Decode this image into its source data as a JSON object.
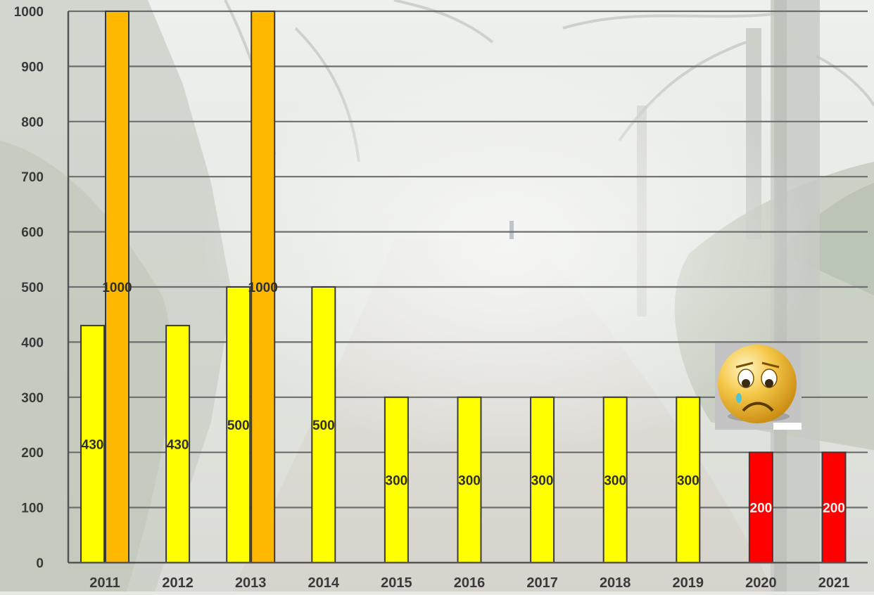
{
  "chart_data": {
    "type": "bar",
    "categories": [
      "2011",
      "2012",
      "2013",
      "2014",
      "2015",
      "2016",
      "2017",
      "2018",
      "2019",
      "2020",
      "2021"
    ],
    "series": [
      {
        "values": [
          430,
          430,
          500,
          500,
          300,
          300,
          300,
          300,
          300,
          200,
          200
        ]
      },
      {
        "values": [
          1000,
          null,
          1000,
          null,
          null,
          null,
          null,
          null,
          null,
          null,
          null
        ]
      }
    ],
    "bar_colors": {
      "yellow": "#ffff00",
      "orange": "#ffb800",
      "red": "#ff0000"
    },
    "bar_color_per_category_series1": [
      "yellow",
      "yellow",
      "yellow",
      "yellow",
      "yellow",
      "yellow",
      "yellow",
      "yellow",
      "yellow",
      "red",
      "red"
    ],
    "yticks": [
      0,
      100,
      200,
      300,
      400,
      500,
      600,
      700,
      800,
      900,
      1000
    ],
    "ylim": [
      0,
      1000
    ],
    "grid": true,
    "title": "",
    "xlabel": "",
    "ylabel": "",
    "legend": "none",
    "background": "misty forest path photograph",
    "annotation_icon": "sad-crying-face-icon"
  }
}
